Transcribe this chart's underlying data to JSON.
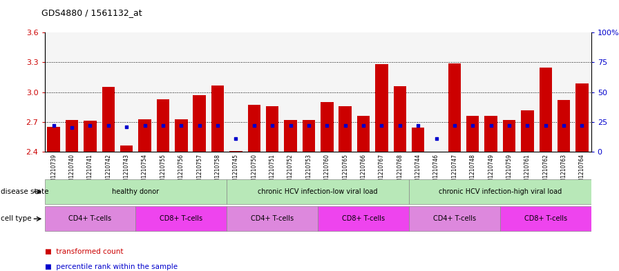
{
  "title": "GDS4880 / 1561132_at",
  "samples": [
    "GSM1210739",
    "GSM1210740",
    "GSM1210741",
    "GSM1210742",
    "GSM1210743",
    "GSM1210754",
    "GSM1210755",
    "GSM1210756",
    "GSM1210757",
    "GSM1210758",
    "GSM1210745",
    "GSM1210750",
    "GSM1210751",
    "GSM1210752",
    "GSM1210753",
    "GSM1210760",
    "GSM1210765",
    "GSM1210766",
    "GSM1210767",
    "GSM1210768",
    "GSM1210744",
    "GSM1210746",
    "GSM1210747",
    "GSM1210748",
    "GSM1210749",
    "GSM1210759",
    "GSM1210761",
    "GSM1210762",
    "GSM1210763",
    "GSM1210764"
  ],
  "transformed_count": [
    2.65,
    2.72,
    2.71,
    3.05,
    2.46,
    2.73,
    2.93,
    2.73,
    2.97,
    3.07,
    2.41,
    2.87,
    2.86,
    2.72,
    2.72,
    2.9,
    2.86,
    2.76,
    3.28,
    3.06,
    2.64,
    2.4,
    3.29,
    2.76,
    2.76,
    2.72,
    2.82,
    3.25,
    2.92,
    3.09
  ],
  "percentile_rank": [
    22,
    20,
    22,
    22,
    21,
    22,
    22,
    22,
    22,
    22,
    11,
    22,
    22,
    22,
    22,
    22,
    22,
    22,
    22,
    22,
    22,
    11,
    22,
    22,
    22,
    22,
    22,
    22,
    22,
    22
  ],
  "ylim_left": [
    2.4,
    3.6
  ],
  "ylim_right": [
    0,
    100
  ],
  "yticks_left": [
    2.4,
    2.7,
    3.0,
    3.3,
    3.6
  ],
  "yticks_right": [
    0,
    25,
    50,
    75,
    100
  ],
  "bar_color": "#cc0000",
  "dot_color": "#0000cc",
  "bar_bottom": 2.4,
  "disease_state_groups": [
    {
      "label": "healthy donor",
      "start": 0,
      "end": 9,
      "color": "#b8e8b8"
    },
    {
      "label": "chronic HCV infection-low viral load",
      "start": 10,
      "end": 19,
      "color": "#b8e8b8"
    },
    {
      "label": "chronic HCV infection-high viral load",
      "start": 20,
      "end": 29,
      "color": "#b8e8b8"
    }
  ],
  "cell_type_groups": [
    {
      "label": "CD4+ T-cells",
      "start": 0,
      "end": 4,
      "color": "#dd88dd"
    },
    {
      "label": "CD8+ T-cells",
      "start": 5,
      "end": 9,
      "color": "#ee44ee"
    },
    {
      "label": "CD4+ T-cells",
      "start": 10,
      "end": 14,
      "color": "#dd88dd"
    },
    {
      "label": "CD8+ T-cells",
      "start": 15,
      "end": 19,
      "color": "#ee44ee"
    },
    {
      "label": "CD4+ T-cells",
      "start": 20,
      "end": 24,
      "color": "#dd88dd"
    },
    {
      "label": "CD8+ T-cells",
      "start": 25,
      "end": 29,
      "color": "#ee44ee"
    }
  ],
  "grid_dotted_values": [
    2.7,
    3.0,
    3.3
  ],
  "plot_bg_color": "#f5f5f5",
  "disease_state_label": "disease state",
  "cell_type_label": "cell type",
  "legend_items": [
    {
      "label": "transformed count",
      "color": "#cc0000"
    },
    {
      "label": "percentile rank within the sample",
      "color": "#0000cc"
    }
  ]
}
